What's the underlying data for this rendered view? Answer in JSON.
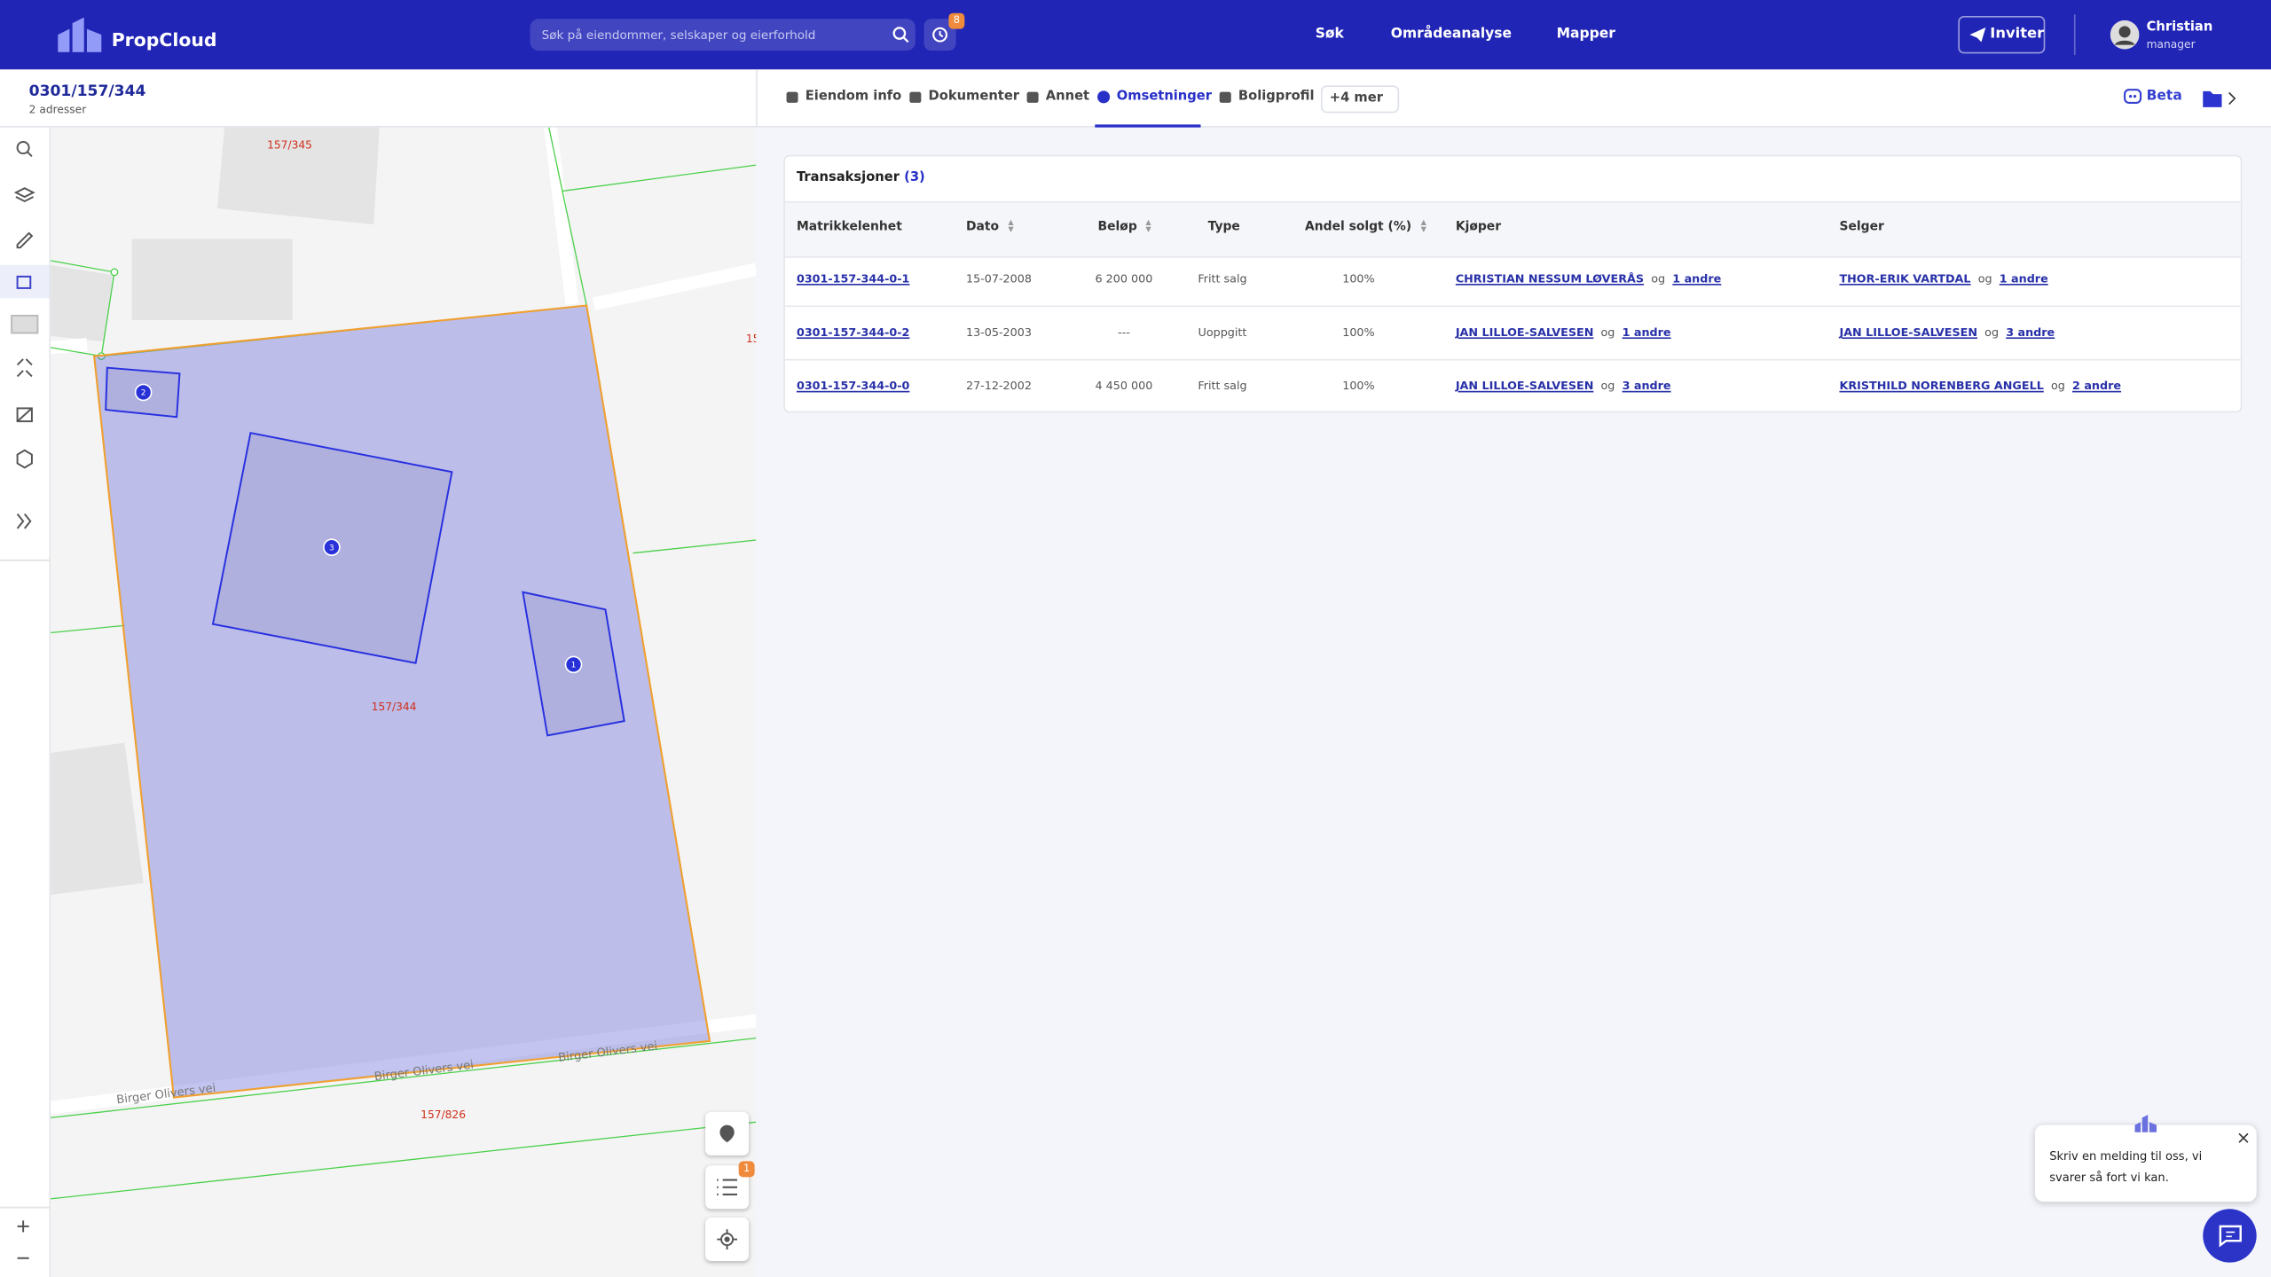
{
  "header": {
    "brand": "PropCloud",
    "search_placeholder": "Søk på eiendommer, selskaper og eierforhold",
    "history_badge": "8",
    "nav": [
      "Søk",
      "Områdeanalyse",
      "Mapper"
    ],
    "invite": "Inviter",
    "user_name": "Christian",
    "user_role": "manager"
  },
  "property": {
    "id": "0301/157/344",
    "addresses": "2 adresser"
  },
  "map": {
    "parcel_labels": [
      "157/345",
      "157/344",
      "157/826",
      "15"
    ],
    "road_labels": [
      "Birger Olivers vei",
      "Birger Olivers vei",
      "Birger Olivers vei"
    ],
    "building_markers": [
      "2",
      "3",
      "1"
    ],
    "list_badge": "1"
  },
  "tabs": {
    "items": [
      "Eiendom info",
      "Dokumenter",
      "Annet",
      "Omsetninger",
      "Boligprofil"
    ],
    "more": "+4 mer",
    "beta": "Beta"
  },
  "table": {
    "title": "Transaksjoner",
    "count": "(3)",
    "columns": [
      "Matrikkelenhet",
      "Dato",
      "Beløp",
      "Type",
      "Andel solgt (%)",
      "Kjøper",
      "Selger"
    ],
    "rows": [
      {
        "unit": "0301-157-344-0-1",
        "date": "15-07-2008",
        "amount": "6 200 000",
        "type": "Fritt salg",
        "share": "100%",
        "buyer": {
          "name": "CHRISTIAN NESSUM LØVERÅS",
          "joiner": "og",
          "others": "1 andre"
        },
        "seller": {
          "name": "THOR-ERIK VARTDAL",
          "joiner": "og",
          "others": "1 andre"
        }
      },
      {
        "unit": "0301-157-344-0-2",
        "date": "13-05-2003",
        "amount": "---",
        "type": "Uoppgitt",
        "share": "100%",
        "buyer": {
          "name": "JAN LILLOE-SALVESEN",
          "joiner": "og",
          "others": "1 andre"
        },
        "seller": {
          "name": "JAN LILLOE-SALVESEN",
          "joiner": "og",
          "others": "3 andre"
        }
      },
      {
        "unit": "0301-157-344-0-0",
        "date": "27-12-2002",
        "amount": "4 450 000",
        "type": "Fritt salg",
        "share": "100%",
        "buyer": {
          "name": "JAN LILLOE-SALVESEN",
          "joiner": "og",
          "others": "3 andre"
        },
        "seller": {
          "name": "KRISTHILD NORENBERG ANGELL",
          "joiner": "og",
          "others": "2 andre"
        }
      }
    ]
  },
  "chat": {
    "message": "Skriv en melding til oss, vi svarer så fort vi kan."
  }
}
